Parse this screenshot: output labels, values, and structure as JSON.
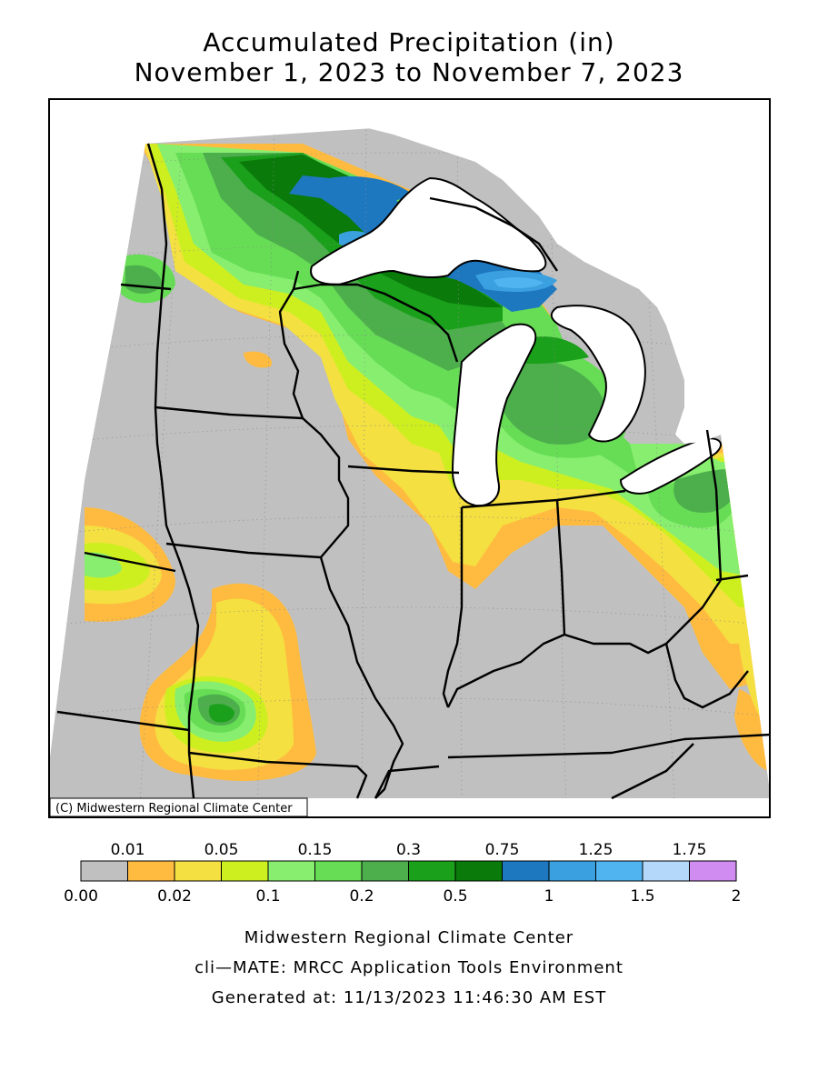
{
  "title": {
    "line1": "Accumulated Precipitation (in)",
    "line2": "November 1, 2023 to November 7, 2023"
  },
  "map": {
    "copyright": "(C) Midwestern Regional Climate Center",
    "region": "Midwest US (MN, WI, MI, IA, IL, IN, OH, MO, KY)"
  },
  "legend": {
    "top_labels": [
      "0.01",
      "0.05",
      "0.15",
      "0.3",
      "0.75",
      "1.25",
      "1.75"
    ],
    "bottom_labels": [
      "0.00",
      "0.02",
      "0.1",
      "0.2",
      "0.5",
      "1",
      "1.5",
      "2"
    ],
    "colors": [
      "#c0c0c0",
      "#ffbb40",
      "#f4e040",
      "#cdef20",
      "#88ee70",
      "#66dd55",
      "#4caf4c",
      "#1aa01a",
      "#0a7a0a",
      "#1e78c0",
      "#3aa0e0",
      "#50b4f0",
      "#b4d8fa",
      "#d08cf0"
    ]
  },
  "footer": {
    "line1": "Midwestern Regional Climate Center",
    "line2": "cli—MATE: MRCC Application Tools Environment",
    "line3": "Generated at: 11/13/2023 11:46:30 AM EST"
  }
}
